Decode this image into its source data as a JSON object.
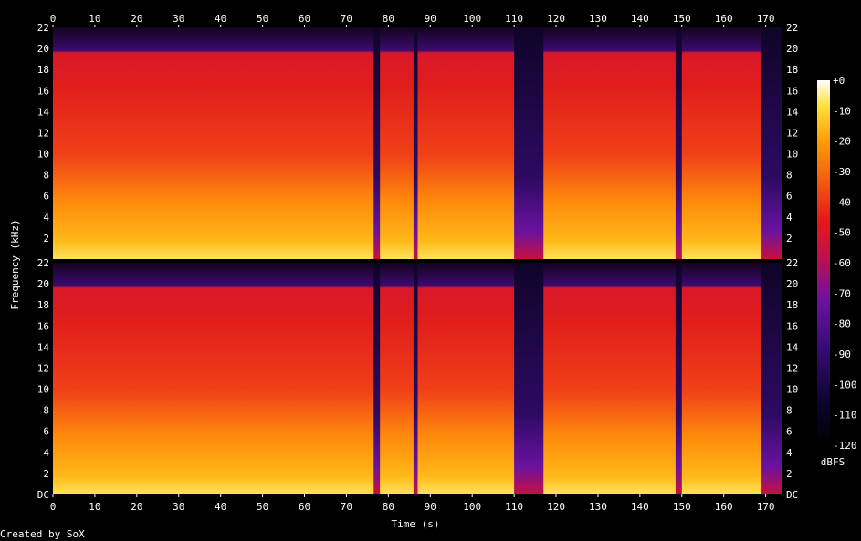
{
  "chart_data": {
    "type": "heatmap",
    "title": "",
    "xlabel": "Time (s)",
    "ylabel": "Frequency (kHz)",
    "xlim": [
      0,
      174
    ],
    "ylim": [
      0,
      22
    ],
    "x_ticks": [
      "0",
      "10",
      "20",
      "30",
      "40",
      "50",
      "60",
      "70",
      "80",
      "90",
      "100",
      "110",
      "120",
      "130",
      "140",
      "150",
      "160",
      "170"
    ],
    "y_ticks_top": [
      "2",
      "4",
      "6",
      "8",
      "10",
      "12",
      "14",
      "16",
      "18",
      "20",
      "22"
    ],
    "y_ticks_bottom": [
      "DC",
      "2",
      "4",
      "6",
      "8",
      "10",
      "12",
      "14",
      "16",
      "18",
      "20",
      "22"
    ],
    "colorbar": {
      "unit": "dBFS",
      "range": [
        -120,
        0
      ],
      "ticks": [
        "+0",
        "-10",
        "-20",
        "-30",
        "-40",
        "-50",
        "-60",
        "-70",
        "-80",
        "-90",
        "-100",
        "-110",
        "-120"
      ]
    },
    "channels": 2,
    "content_cutoff_khz": 20,
    "quiet_segments_s": [
      [
        76.5,
        78
      ],
      [
        86,
        87
      ],
      [
        110,
        117
      ],
      [
        148.5,
        150
      ],
      [
        169,
        174
      ]
    ],
    "footer": "Created by SoX"
  }
}
